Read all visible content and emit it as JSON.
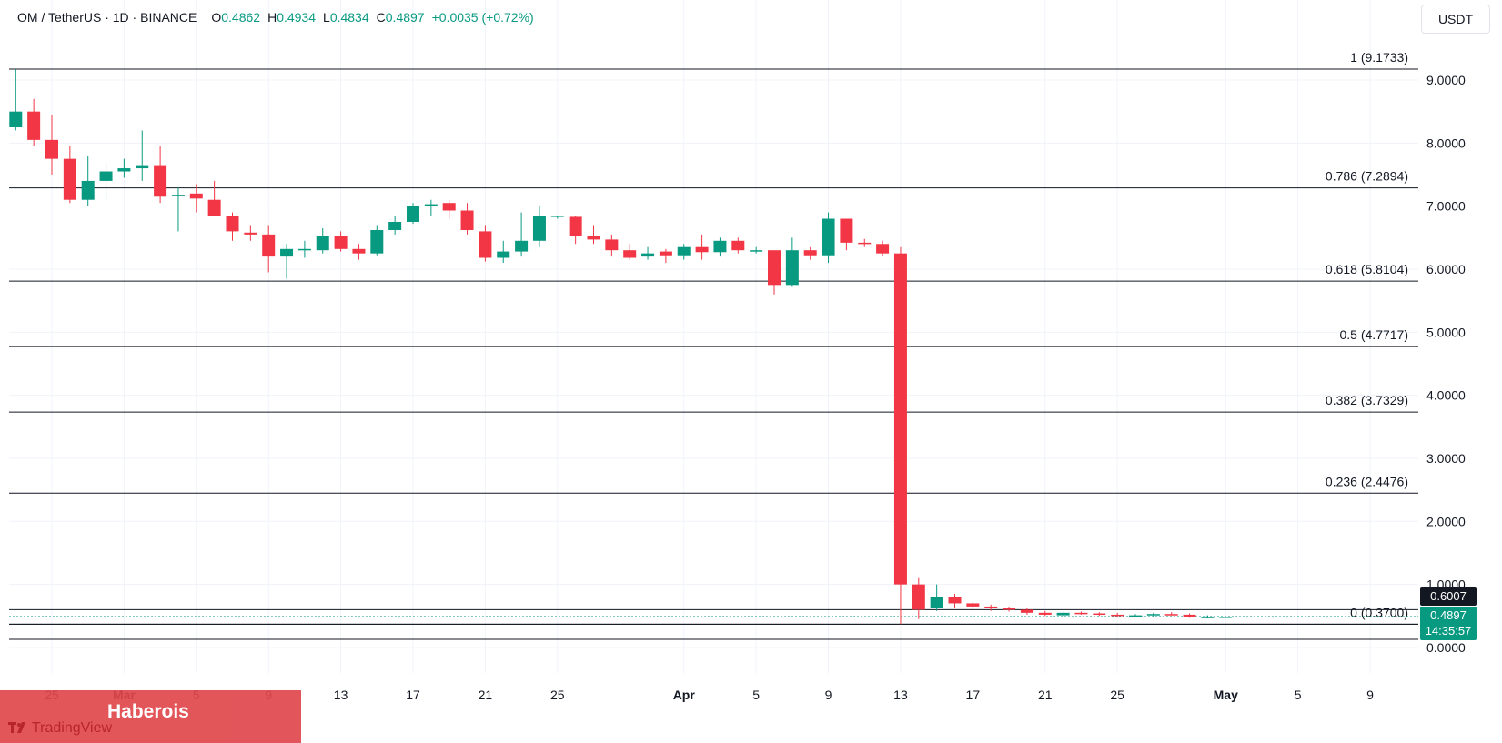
{
  "header": {
    "symbol": "OM / TetherUS · 1D · BINANCE",
    "o_label": "O",
    "o_value": "0.4862",
    "h_label": "H",
    "h_value": "0.4934",
    "l_label": "L",
    "l_value": "0.4834",
    "c_label": "C",
    "c_value": "0.4897",
    "change": "+0.0035 (+0.72%)"
  },
  "currency_button": "USDT",
  "price_tags": {
    "line_price": "0.6007",
    "last_price": "0.4897",
    "countdown": "14:35:57"
  },
  "watermark": {
    "brand": "Haberois",
    "platform": "TradingView",
    "icon": "tradingview-logo-icon"
  },
  "colors": {
    "up": "#089981",
    "down": "#F23645",
    "grid": "#F0F3FA",
    "level": "#131722"
  },
  "chart_data": {
    "type": "candlestick",
    "y_ticks": [
      "9.0000",
      "8.0000",
      "7.0000",
      "6.0000",
      "5.0000",
      "4.0000",
      "3.0000",
      "2.0000",
      "1.0000",
      "0.0000"
    ],
    "ylim": [
      0,
      9.1733
    ],
    "x_ticks": [
      {
        "label": "25",
        "day": 0
      },
      {
        "label": "Mar",
        "day": 4,
        "bold": true
      },
      {
        "label": "5",
        "day": 8
      },
      {
        "label": "9",
        "day": 12
      },
      {
        "label": "13",
        "day": 16
      },
      {
        "label": "17",
        "day": 20
      },
      {
        "label": "21",
        "day": 24
      },
      {
        "label": "25",
        "day": 28
      },
      {
        "label": "Apr",
        "day": 35,
        "bold": true
      },
      {
        "label": "5",
        "day": 39
      },
      {
        "label": "9",
        "day": 43
      },
      {
        "label": "13",
        "day": 47
      },
      {
        "label": "17",
        "day": 51
      },
      {
        "label": "21",
        "day": 55
      },
      {
        "label": "25",
        "day": 59
      },
      {
        "label": "May",
        "day": 65,
        "bold": true
      },
      {
        "label": "5",
        "day": 69
      },
      {
        "label": "9",
        "day": 73
      }
    ],
    "fib_levels": [
      {
        "label": "1 (9.1733)",
        "value": 9.1733
      },
      {
        "label": "0.786 (7.2894)",
        "value": 7.2894
      },
      {
        "label": "0.618 (5.8104)",
        "value": 5.8104
      },
      {
        "label": "0.5 (4.7717)",
        "value": 4.7717
      },
      {
        "label": "0.382 (3.7329)",
        "value": 3.7329
      },
      {
        "label": "0.236 (2.4476)",
        "value": 2.4476
      },
      {
        "label": "0 (0.3700)",
        "value": 0.37
      }
    ],
    "extra_lines": [
      0.6007,
      0.37,
      0.13
    ],
    "current_price": 0.4897,
    "ohlc": [
      [
        8.25,
        9.17,
        8.2,
        8.5
      ],
      [
        8.5,
        8.7,
        7.95,
        8.05
      ],
      [
        8.05,
        8.45,
        7.5,
        7.75
      ],
      [
        7.75,
        7.95,
        7.05,
        7.1
      ],
      [
        7.1,
        7.8,
        7.0,
        7.4
      ],
      [
        7.4,
        7.7,
        7.1,
        7.55
      ],
      [
        7.55,
        7.75,
        7.45,
        7.6
      ],
      [
        7.6,
        8.2,
        7.4,
        7.65
      ],
      [
        7.65,
        7.95,
        7.05,
        7.15
      ],
      [
        7.18,
        7.3,
        6.6,
        7.18
      ],
      [
        7.2,
        7.35,
        6.9,
        7.12
      ],
      [
        7.1,
        7.4,
        6.85,
        6.85
      ],
      [
        6.85,
        6.9,
        6.45,
        6.6
      ],
      [
        6.58,
        6.7,
        6.45,
        6.55
      ],
      [
        6.55,
        6.7,
        5.95,
        6.2
      ],
      [
        6.2,
        6.4,
        5.85,
        6.32
      ],
      [
        6.3,
        6.45,
        6.18,
        6.32
      ],
      [
        6.3,
        6.65,
        6.25,
        6.52
      ],
      [
        6.52,
        6.6,
        6.28,
        6.32
      ],
      [
        6.32,
        6.4,
        6.15,
        6.25
      ],
      [
        6.25,
        6.7,
        6.22,
        6.62
      ],
      [
        6.62,
        6.85,
        6.55,
        6.75
      ],
      [
        6.75,
        7.05,
        6.72,
        7.0
      ],
      [
        7.0,
        7.1,
        6.85,
        7.03
      ],
      [
        7.05,
        7.1,
        6.8,
        6.93
      ],
      [
        6.93,
        7.05,
        6.55,
        6.62
      ],
      [
        6.6,
        6.7,
        6.12,
        6.18
      ],
      [
        6.18,
        6.45,
        6.1,
        6.28
      ],
      [
        6.28,
        6.9,
        6.2,
        6.45
      ],
      [
        6.45,
        7.0,
        6.35,
        6.85
      ],
      [
        6.85,
        6.85,
        6.8,
        6.85
      ],
      [
        6.83,
        6.85,
        6.4,
        6.53
      ],
      [
        6.53,
        6.7,
        6.4,
        6.47
      ],
      [
        6.47,
        6.55,
        6.2,
        6.3
      ],
      [
        6.3,
        6.4,
        6.15,
        6.18
      ],
      [
        6.2,
        6.35,
        6.15,
        6.25
      ],
      [
        6.28,
        6.32,
        6.1,
        6.22
      ],
      [
        6.22,
        6.4,
        6.15,
        6.35
      ],
      [
        6.35,
        6.55,
        6.15,
        6.27
      ],
      [
        6.27,
        6.5,
        6.2,
        6.45
      ],
      [
        6.45,
        6.5,
        6.25,
        6.3
      ],
      [
        6.3,
        6.35,
        6.25,
        6.3
      ],
      [
        6.3,
        6.3,
        5.6,
        5.75
      ],
      [
        5.75,
        6.5,
        5.72,
        6.3
      ],
      [
        6.3,
        6.35,
        6.15,
        6.22
      ],
      [
        6.22,
        6.9,
        6.1,
        6.8
      ],
      [
        6.8,
        6.8,
        6.3,
        6.42
      ],
      [
        6.42,
        6.48,
        6.35,
        6.4
      ],
      [
        6.4,
        6.45,
        6.2,
        6.25
      ],
      [
        6.25,
        6.35,
        0.37,
        1.0
      ],
      [
        1.0,
        1.1,
        0.45,
        0.6
      ],
      [
        0.62,
        1.0,
        0.58,
        0.8
      ],
      [
        0.8,
        0.85,
        0.62,
        0.7
      ],
      [
        0.7,
        0.72,
        0.6,
        0.65
      ],
      [
        0.65,
        0.68,
        0.58,
        0.62
      ],
      [
        0.62,
        0.64,
        0.57,
        0.6
      ],
      [
        0.6,
        0.62,
        0.52,
        0.55
      ],
      [
        0.55,
        0.58,
        0.5,
        0.52
      ],
      [
        0.51,
        0.57,
        0.49,
        0.55
      ],
      [
        0.55,
        0.57,
        0.52,
        0.54
      ],
      [
        0.54,
        0.56,
        0.5,
        0.52
      ],
      [
        0.52,
        0.55,
        0.49,
        0.51
      ],
      [
        0.5,
        0.53,
        0.48,
        0.51
      ],
      [
        0.51,
        0.55,
        0.49,
        0.53
      ],
      [
        0.53,
        0.56,
        0.51,
        0.52
      ],
      [
        0.52,
        0.54,
        0.47,
        0.48
      ],
      [
        0.48,
        0.51,
        0.46,
        0.486
      ],
      [
        0.4862,
        0.4934,
        0.4834,
        0.4897
      ]
    ]
  }
}
